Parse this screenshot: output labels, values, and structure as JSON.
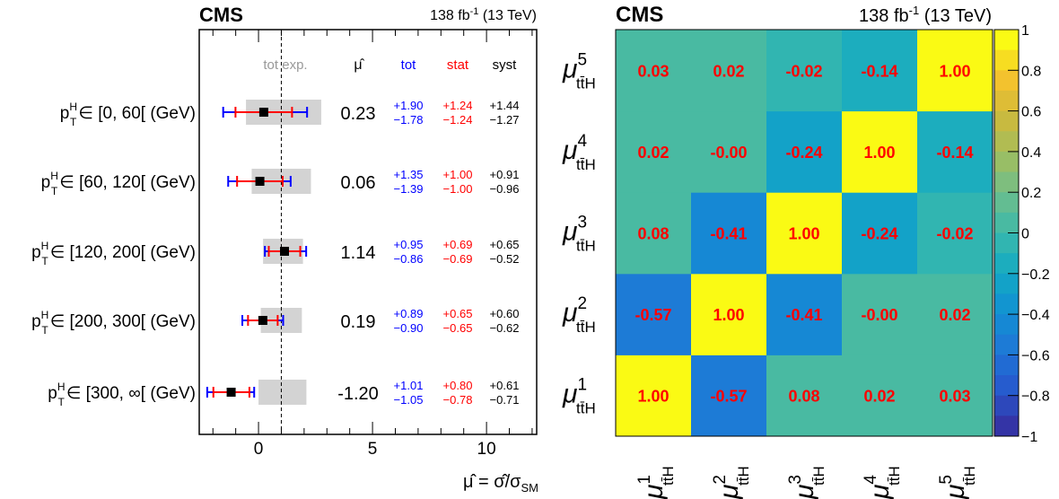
{
  "left_panel": {
    "cms_label": "CMS",
    "lumi_label": "138 fb",
    "lumi_sup": "-1",
    "lumi_energy": " (13 TeV)",
    "headers": {
      "tot_exp": "tot exp.",
      "mu_hat": "μ̂",
      "tot": "tot",
      "stat": "stat",
      "syst": "syst"
    },
    "x_title_main": "μ̂ = σ̂/σ",
    "x_title_sub": "SM",
    "bin_label_var": "p",
    "bin_label_sup": "H",
    "bin_label_sub": "T"
  },
  "right_panel": {
    "cms_label": "CMS",
    "lumi_label": "138 fb",
    "lumi_sup": "-1",
    "lumi_energy": " (13 TeV)",
    "param_symbol": "μ",
    "param_sub": "tt̄H",
    "param_indices": [
      "1",
      "2",
      "3",
      "4",
      "5"
    ]
  },
  "colors": {
    "tot": "#0000ff",
    "stat": "#ff0000",
    "syst": "#000000",
    "expected_band": "#d3d3d3",
    "cell_text": "#ff0000"
  },
  "chart_data": [
    {
      "type": "scatter",
      "title": "",
      "xlabel": "μ̂ = σ̂/σSM",
      "xlim": [
        -2.6,
        12.2
      ],
      "x_ticks": [
        "0",
        "5",
        "10"
      ],
      "x_tick_values": [
        0,
        5,
        10
      ],
      "reference_line": 1,
      "bins": [
        {
          "label": "∈ [0, 60[ (GeV)",
          "mu": 0.23,
          "mu_text": "0.23",
          "tot_up": "+1.90",
          "tot_dn": "−1.78",
          "stat_up": "+1.24",
          "stat_dn": "−1.24",
          "syst_up": "+1.44",
          "syst_dn": "−1.27",
          "tot": [
            1.9,
            1.78
          ],
          "stat": [
            1.24,
            1.24
          ],
          "exp_band": [
            -0.55,
            2.75
          ]
        },
        {
          "label": "∈ [60, 120[ (GeV)",
          "mu": 0.06,
          "mu_text": "0.06",
          "tot_up": "+1.35",
          "tot_dn": "−1.39",
          "stat_up": "+1.00",
          "stat_dn": "−1.00",
          "syst_up": "+0.91",
          "syst_dn": "−0.96",
          "tot": [
            1.35,
            1.39
          ],
          "stat": [
            1.0,
            1.0
          ],
          "exp_band": [
            -0.3,
            2.3
          ]
        },
        {
          "label": "∈ [120, 200[ (GeV)",
          "mu": 1.14,
          "mu_text": "1.14",
          "tot_up": "+0.95",
          "tot_dn": "−0.86",
          "stat_up": "+0.69",
          "stat_dn": "−0.69",
          "syst_up": "+0.65",
          "syst_dn": "−0.52",
          "tot": [
            0.95,
            0.86
          ],
          "stat": [
            0.69,
            0.69
          ],
          "exp_band": [
            0.2,
            1.95
          ]
        },
        {
          "label": "∈ [200, 300[ (GeV)",
          "mu": 0.19,
          "mu_text": "0.19",
          "tot_up": "+0.89",
          "tot_dn": "−0.90",
          "stat_up": "+0.65",
          "stat_dn": "−0.65",
          "syst_up": "+0.60",
          "syst_dn": "−0.62",
          "tot": [
            0.89,
            0.9
          ],
          "stat": [
            0.65,
            0.65
          ],
          "exp_band": [
            0.1,
            1.9
          ]
        },
        {
          "label": "∈ [300, ∞[ (GeV)",
          "mu": -1.2,
          "mu_text": "-1.20",
          "tot_up": "+1.01",
          "tot_dn": "−1.05",
          "stat_up": "+0.80",
          "stat_dn": "−0.78",
          "syst_up": "+0.61",
          "syst_dn": "−0.71",
          "tot": [
            1.01,
            1.05
          ],
          "stat": [
            0.8,
            0.78
          ],
          "exp_band": [
            0.0,
            2.1
          ]
        }
      ]
    },
    {
      "type": "heatmap",
      "title": "",
      "zlim": [
        -1,
        1
      ],
      "z_ticks": [
        "1",
        "0.8",
        "0.6",
        "0.4",
        "0.2",
        "0",
        "−0.2",
        "−0.4",
        "−0.6",
        "−0.8",
        "−1"
      ],
      "z_tick_values": [
        1,
        0.8,
        0.6,
        0.4,
        0.2,
        0,
        -0.2,
        -0.4,
        -0.6,
        -0.8,
        -1
      ],
      "matrix": [
        [
          1.0,
          -0.57,
          0.08,
          0.02,
          0.03
        ],
        [
          -0.57,
          1.0,
          -0.41,
          -0.0,
          0.02
        ],
        [
          0.08,
          -0.41,
          1.0,
          -0.24,
          -0.02
        ],
        [
          0.02,
          -0.0,
          -0.24,
          1.0,
          -0.14
        ],
        [
          0.03,
          0.02,
          -0.02,
          -0.14,
          1.0
        ]
      ],
      "matrix_text": [
        [
          "1.00",
          "-0.57",
          "0.08",
          "0.02",
          "0.03"
        ],
        [
          "-0.57",
          "1.00",
          "-0.41",
          "-0.00",
          "0.02"
        ],
        [
          "0.08",
          "-0.41",
          "1.00",
          "-0.24",
          "-0.02"
        ],
        [
          "0.02",
          "-0.00",
          "-0.24",
          "1.00",
          "-0.14"
        ],
        [
          "0.03",
          "0.02",
          "-0.02",
          "-0.14",
          "1.00"
        ]
      ]
    }
  ]
}
